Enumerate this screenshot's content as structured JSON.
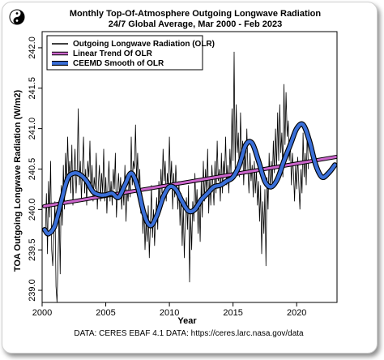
{
  "chart_data": {
    "type": "line",
    "title": "Monthly Top-Of-Atmosphere Outgoing Longwave Radiation",
    "subtitle": "24/7 Global Average, Mar 2000 - Feb 2023",
    "xlabel": "Year",
    "ylabel": "TOA Outgoing Longwave Radiation (W/m2)",
    "xlim": [
      2000,
      2023.17
    ],
    "ylim": [
      238.85,
      242.2
    ],
    "xticks": [
      "2000",
      "2005",
      "2010",
      "2015",
      "2020"
    ],
    "xtick_values": [
      2000,
      2005,
      2010,
      2015,
      2020
    ],
    "yticks": [
      "239.0",
      "239.5",
      "240.0",
      "240.5",
      "241.0",
      "241.5",
      "242.0"
    ],
    "ytick_values": [
      239.0,
      239.5,
      240.0,
      240.5,
      241.0,
      241.5,
      242.0
    ],
    "grid": false,
    "legend_position": "top-left",
    "source_text": "DATA: CERES EBAF 4.1 DATA: https://ceres.larc.nasa.gov/data",
    "series": [
      {
        "name": "Outgoing Longwave Radiation (OLR)",
        "kind": "monthly",
        "color": "#000000",
        "start": 2000.17,
        "step": 0.08333,
        "values": [
          239.75,
          239.72,
          240.2,
          239.45,
          240.35,
          239.9,
          240.6,
          239.5,
          239.3,
          239.7,
          240.1,
          239.05,
          238.85,
          239.4,
          240.0,
          239.2,
          240.3,
          239.8,
          240.55,
          240.0,
          240.7,
          240.3,
          240.9,
          240.4,
          240.6,
          240.2,
          240.8,
          240.05,
          240.45,
          240.75,
          240.2,
          240.5,
          241.25,
          240.3,
          240.6,
          240.1,
          240.55,
          240.9,
          240.2,
          240.5,
          240.05,
          240.6,
          240.4,
          240.85,
          240.2,
          240.55,
          240.1,
          240.4,
          240.25,
          240.7,
          240.0,
          240.3,
          240.55,
          240.1,
          240.45,
          240.2,
          240.75,
          240.1,
          240.4,
          239.95,
          240.3,
          240.6,
          240.1,
          240.35,
          240.05,
          240.5,
          240.25,
          240.7,
          239.9,
          240.2,
          240.45,
          240.15,
          240.4,
          240.0,
          240.3,
          240.05,
          240.55,
          239.85,
          240.25,
          240.1,
          240.4,
          240.15,
          240.9,
          240.3,
          240.6,
          240.5,
          241.05,
          240.35,
          240.7,
          240.2,
          240.5,
          239.95,
          240.2,
          239.7,
          240.05,
          239.5,
          239.85,
          239.6,
          240.05,
          239.4,
          239.8,
          240.3,
          239.65,
          240.0,
          239.55,
          239.9,
          240.15,
          239.75,
          240.35,
          240.0,
          240.5,
          240.2,
          240.75,
          240.35,
          240.6,
          240.1,
          240.45,
          240.25,
          240.9,
          240.3,
          240.6,
          240.0,
          240.45,
          240.15,
          240.55,
          240.25,
          240.0,
          240.35,
          239.8,
          240.2,
          239.55,
          240.05,
          239.4,
          239.9,
          240.15,
          239.75,
          240.3,
          239.1,
          239.95,
          239.5,
          240.1,
          239.85,
          240.45,
          240.0,
          240.25,
          239.7,
          240.1,
          239.6,
          240.35,
          239.9,
          240.6,
          240.1,
          240.5,
          240.2,
          240.75,
          239.95,
          240.4,
          240.05,
          240.55,
          240.3,
          240.05,
          240.6,
          240.2,
          240.85,
          240.35,
          240.5,
          240.1,
          240.7,
          240.2,
          240.6,
          240.4,
          240.9,
          240.3,
          240.55,
          240.2,
          240.75,
          240.45,
          241.25,
          240.6,
          241.95,
          240.5,
          241.3,
          240.7,
          240.95,
          240.4,
          241.2,
          240.6,
          240.85,
          240.3,
          240.7,
          240.45,
          241.0,
          240.5,
          240.2,
          240.7,
          240.35,
          240.55,
          240.15,
          240.6,
          240.2,
          240.5,
          240.05,
          240.35,
          239.85,
          240.3,
          239.45,
          240.1,
          239.7,
          240.25,
          239.3,
          240.4,
          240.0,
          240.7,
          240.25,
          240.6,
          240.3,
          240.85,
          240.45,
          241.0,
          240.5,
          241.2,
          240.6,
          241.3,
          240.7,
          240.95,
          240.4,
          241.55,
          240.8,
          241.45,
          240.9,
          241.1,
          240.6,
          240.85,
          240.3,
          240.7,
          240.45,
          240.1,
          240.55,
          240.25,
          240.65,
          240.3,
          240.0,
          240.5,
          240.2,
          240.95,
          240.4,
          240.7,
          240.3,
          241.0,
          240.5
        ]
      },
      {
        "name": "Linear Trend Of OLR",
        "kind": "trend",
        "color": "#cc66cc",
        "x": [
          2000.17,
          2023.1
        ],
        "values": [
          240.04,
          240.65
        ]
      },
      {
        "name": "CEEMD Smooth of OLR",
        "kind": "smooth",
        "color": "#3a6fd8",
        "x": [
          2000.2,
          2000.5,
          2001.0,
          2001.5,
          2002.0,
          2002.5,
          2003.0,
          2003.5,
          2004.0,
          2004.5,
          2005.0,
          2005.5,
          2006.0,
          2006.5,
          2007.0,
          2007.5,
          2008.0,
          2008.5,
          2009.0,
          2009.5,
          2010.0,
          2010.5,
          2011.0,
          2011.5,
          2012.0,
          2012.5,
          2013.0,
          2013.5,
          2014.0,
          2014.5,
          2015.0,
          2015.5,
          2016.0,
          2016.5,
          2017.0,
          2017.5,
          2018.0,
          2018.5,
          2019.0,
          2019.5,
          2020.0,
          2020.5,
          2021.0,
          2021.5,
          2022.0,
          2022.5,
          2023.0
        ],
        "values": [
          239.75,
          239.7,
          239.8,
          240.1,
          240.38,
          240.45,
          240.43,
          240.35,
          240.22,
          240.18,
          240.18,
          240.2,
          240.15,
          240.3,
          240.45,
          240.28,
          239.95,
          239.8,
          239.92,
          240.15,
          240.28,
          240.25,
          240.1,
          239.98,
          240.0,
          240.12,
          240.2,
          240.28,
          240.3,
          240.35,
          240.4,
          240.55,
          240.8,
          240.82,
          240.6,
          240.35,
          240.28,
          240.38,
          240.6,
          240.8,
          241.0,
          241.05,
          240.85,
          240.55,
          240.4,
          240.45,
          240.55
        ]
      }
    ]
  }
}
